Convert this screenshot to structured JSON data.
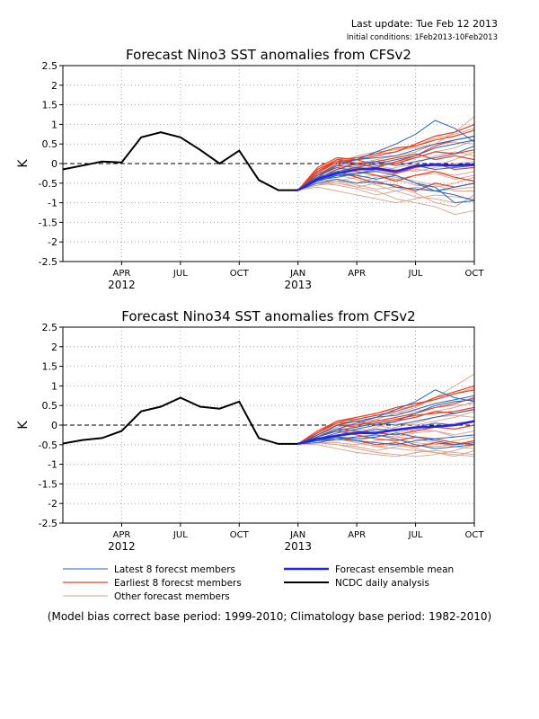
{
  "header": {
    "last_update": "Last update: Tue Feb 12 2013",
    "initial_conditions": "Initial conditions: 1Feb2013-10Feb2013"
  },
  "footnote": "(Model bias correct base period: 1999-2010; Climatology base period: 1982-2010)",
  "colors": {
    "latest": "#2166c4",
    "earliest": "#f03c1a",
    "other": "#d9a08a",
    "mean": "#2424e6",
    "analysis": "#000000"
  },
  "legend": {
    "latest": "Latest 8 forecst members",
    "earliest": "Earliest 8 forecst members",
    "other": "Other forecast members",
    "mean": "Forecast ensemble mean",
    "analysis": "NCDC daily analysis"
  },
  "chart_data": [
    {
      "type": "line",
      "title": "Forecast Nino3 SST anomalies from CFSv2",
      "ylabel": "K",
      "ylim": [
        -2.5,
        2.5
      ],
      "yticks": [
        "2.5",
        "2",
        "1.5",
        "1",
        "0.5",
        "0",
        "-0.5",
        "-1",
        "-1.5",
        "-2",
        "-2.5"
      ],
      "xlim": [
        0,
        21
      ],
      "xticks": [
        {
          "x": 3,
          "label": "APR",
          "year": "2012"
        },
        {
          "x": 6,
          "label": "JUL",
          "year": ""
        },
        {
          "x": 9,
          "label": "OCT",
          "year": ""
        },
        {
          "x": 12,
          "label": "JAN",
          "year": "2013"
        },
        {
          "x": 15,
          "label": "APR",
          "year": ""
        },
        {
          "x": 18,
          "label": "JUL",
          "year": ""
        },
        {
          "x": 21,
          "label": "OCT",
          "year": ""
        }
      ],
      "grid": true,
      "zero_line": "dashed",
      "analysis": {
        "x": [
          0,
          1,
          2,
          3,
          4,
          5,
          6,
          7,
          8,
          9,
          10,
          11,
          12
        ],
        "y": [
          -0.15,
          -0.05,
          0.05,
          0.03,
          0.67,
          0.8,
          0.67,
          0.35,
          0.0,
          0.33,
          -0.42,
          -0.68,
          -0.68
        ]
      },
      "forecast_x": [
        12,
        13,
        14,
        15,
        16,
        17,
        18,
        19,
        20,
        21
      ],
      "ensemble_mean": [
        -0.68,
        -0.4,
        -0.25,
        -0.15,
        -0.12,
        -0.2,
        -0.06,
        -0.03,
        -0.05,
        -0.02
      ],
      "members": {
        "latest": [
          [
            -0.68,
            -0.35,
            -0.05,
            0.1,
            0.3,
            0.5,
            0.75,
            1.1,
            0.9,
            0.55
          ],
          [
            -0.68,
            -0.45,
            -0.3,
            -0.25,
            -0.2,
            -0.3,
            -0.5,
            -0.7,
            -0.8,
            -0.95
          ],
          [
            -0.68,
            -0.3,
            0.0,
            0.1,
            0.15,
            0.2,
            0.35,
            0.5,
            0.6,
            0.7
          ],
          [
            -0.68,
            -0.5,
            -0.4,
            -0.5,
            -0.45,
            -0.6,
            -0.65,
            -0.7,
            -0.6,
            -0.5
          ],
          [
            -0.68,
            -0.4,
            -0.2,
            -0.1,
            0.0,
            0.1,
            0.2,
            0.4,
            0.5,
            0.6
          ],
          [
            -0.68,
            -0.45,
            -0.3,
            -0.3,
            -0.4,
            -0.3,
            -0.5,
            -0.6,
            -1.0,
            -0.95
          ],
          [
            -0.68,
            -0.38,
            -0.15,
            0.0,
            0.05,
            -0.05,
            0.05,
            0.15,
            0.25,
            0.45
          ],
          [
            -0.68,
            -0.42,
            -0.35,
            -0.25,
            -0.15,
            -0.2,
            -0.05,
            -0.15,
            -0.1,
            -0.05
          ]
        ],
        "earliest": [
          [
            -0.68,
            -0.1,
            0.15,
            0.1,
            0.2,
            0.3,
            0.5,
            0.7,
            0.8,
            1.0
          ],
          [
            -0.68,
            -0.2,
            0.1,
            0.0,
            -0.1,
            0.05,
            0.2,
            0.45,
            0.6,
            0.7
          ],
          [
            -0.68,
            -0.3,
            -0.1,
            -0.2,
            -0.3,
            -0.45,
            -0.3,
            -0.2,
            -0.35,
            -0.45
          ],
          [
            -0.68,
            -0.25,
            0.05,
            0.1,
            -0.05,
            0.0,
            0.15,
            0.3,
            0.25,
            0.35
          ],
          [
            -0.68,
            -0.35,
            -0.2,
            -0.35,
            -0.5,
            -0.55,
            -0.7,
            -0.5,
            -0.6,
            -0.5
          ],
          [
            -0.68,
            -0.15,
            0.1,
            0.15,
            0.25,
            0.4,
            0.45,
            0.6,
            0.7,
            0.85
          ],
          [
            -0.68,
            -0.3,
            -0.05,
            -0.1,
            -0.15,
            -0.25,
            -0.1,
            0.0,
            -0.15,
            -0.1
          ],
          [
            -0.68,
            -0.2,
            0.05,
            -0.05,
            0.05,
            0.15,
            0.25,
            0.1,
            0.2,
            0.1
          ]
        ],
        "other": [
          [
            -0.68,
            -0.5,
            -0.45,
            -0.6,
            -0.7,
            -0.9,
            -1.0,
            -1.1,
            -1.3,
            -1.2
          ],
          [
            -0.68,
            -0.45,
            -0.3,
            -0.4,
            -0.55,
            -0.7,
            -0.85,
            -0.9,
            -1.0,
            -0.95
          ],
          [
            -0.68,
            -0.3,
            -0.15,
            -0.1,
            0.1,
            0.2,
            0.3,
            0.5,
            0.8,
            1.2
          ],
          [
            -0.68,
            -0.55,
            -0.5,
            -0.6,
            -0.5,
            -0.4,
            -0.55,
            -0.6,
            -0.5,
            -0.35
          ],
          [
            -0.68,
            -0.35,
            0.0,
            0.2,
            0.3,
            0.35,
            0.4,
            0.5,
            0.55,
            0.5
          ],
          [
            -0.68,
            -0.6,
            -0.7,
            -0.8,
            -0.9,
            -1.0,
            -0.9,
            -0.8,
            -0.85,
            -0.9
          ],
          [
            -0.68,
            -0.4,
            -0.25,
            -0.15,
            -0.2,
            -0.1,
            0.0,
            0.2,
            0.3,
            0.2
          ],
          [
            -0.68,
            -0.5,
            -0.45,
            -0.35,
            -0.3,
            -0.4,
            -0.3,
            -0.25,
            -0.4,
            -0.3
          ],
          [
            -0.68,
            -0.25,
            -0.1,
            0.0,
            0.1,
            0.0,
            -0.1,
            -0.05,
            0.1,
            0.3
          ],
          [
            -0.68,
            -0.45,
            -0.4,
            -0.55,
            -0.65,
            -0.6,
            -0.75,
            -1.0,
            -1.1,
            -0.8
          ],
          [
            -0.68,
            -0.35,
            -0.2,
            -0.3,
            -0.1,
            0.05,
            0.15,
            0.3,
            0.4,
            0.6
          ],
          [
            -0.68,
            -0.5,
            -0.55,
            -0.65,
            -0.8,
            -0.7,
            -0.6,
            -0.7,
            -0.65,
            -0.6
          ],
          [
            -0.68,
            -0.3,
            -0.05,
            0.05,
            -0.05,
            -0.15,
            -0.2,
            -0.1,
            0.0,
            0.05
          ],
          [
            -0.68,
            -0.4,
            -0.3,
            -0.2,
            -0.3,
            -0.35,
            -0.45,
            -0.55,
            -0.7,
            -0.7
          ],
          [
            -0.68,
            -0.2,
            0.05,
            0.15,
            0.25,
            0.3,
            0.45,
            0.65,
            0.75,
            0.9
          ],
          [
            -0.68,
            -0.55,
            -0.45,
            -0.5,
            -0.35,
            -0.25,
            -0.15,
            -0.2,
            -0.3,
            -0.2
          ]
        ]
      }
    },
    {
      "type": "line",
      "title": "Forecast Nino34 SST anomalies from CFSv2",
      "ylabel": "K",
      "ylim": [
        -2.5,
        2.5
      ],
      "yticks": [
        "2.5",
        "2",
        "1.5",
        "1",
        "0.5",
        "0",
        "-0.5",
        "-1",
        "-1.5",
        "-2",
        "-2.5"
      ],
      "xlim": [
        0,
        21
      ],
      "xticks": [
        {
          "x": 3,
          "label": "APR",
          "year": "2012"
        },
        {
          "x": 6,
          "label": "JUL",
          "year": ""
        },
        {
          "x": 9,
          "label": "OCT",
          "year": ""
        },
        {
          "x": 12,
          "label": "JAN",
          "year": "2013"
        },
        {
          "x": 15,
          "label": "APR",
          "year": ""
        },
        {
          "x": 18,
          "label": "JUL",
          "year": ""
        },
        {
          "x": 21,
          "label": "OCT",
          "year": ""
        }
      ],
      "grid": true,
      "zero_line": "dashed",
      "analysis": {
        "x": [
          0,
          1,
          2,
          3,
          4,
          5,
          6,
          7,
          8,
          9,
          10,
          11,
          12
        ],
        "y": [
          -0.47,
          -0.38,
          -0.33,
          -0.15,
          0.35,
          0.47,
          0.7,
          0.47,
          0.42,
          0.6,
          -0.33,
          -0.48,
          -0.48
        ]
      },
      "forecast_x": [
        12,
        13,
        14,
        15,
        16,
        17,
        18,
        19,
        20,
        21
      ],
      "ensemble_mean": [
        -0.48,
        -0.35,
        -0.27,
        -0.2,
        -0.2,
        -0.12,
        -0.06,
        -0.04,
        0.0,
        0.1
      ],
      "members": {
        "latest": [
          [
            -0.48,
            -0.3,
            -0.1,
            0.05,
            0.2,
            0.4,
            0.6,
            0.9,
            0.7,
            0.6
          ],
          [
            -0.48,
            -0.4,
            -0.35,
            -0.3,
            -0.25,
            -0.35,
            -0.5,
            -0.6,
            -0.55,
            -0.5
          ],
          [
            -0.48,
            -0.25,
            0.0,
            0.1,
            0.2,
            0.25,
            0.4,
            0.55,
            0.65,
            0.75
          ],
          [
            -0.48,
            -0.45,
            -0.35,
            -0.4,
            -0.45,
            -0.5,
            -0.4,
            -0.35,
            -0.3,
            -0.25
          ],
          [
            -0.48,
            -0.35,
            -0.2,
            -0.1,
            0.0,
            0.1,
            0.3,
            0.5,
            0.6,
            0.65
          ],
          [
            -0.48,
            -0.4,
            -0.3,
            -0.35,
            -0.3,
            -0.2,
            -0.3,
            -0.4,
            -0.5,
            -0.45
          ],
          [
            -0.48,
            -0.3,
            -0.15,
            -0.05,
            0.05,
            0.0,
            0.1,
            0.2,
            0.3,
            0.4
          ],
          [
            -0.48,
            -0.35,
            -0.25,
            -0.2,
            -0.1,
            -0.15,
            -0.05,
            0.05,
            0.0,
            0.1
          ]
        ],
        "earliest": [
          [
            -0.48,
            -0.15,
            0.1,
            0.15,
            0.25,
            0.35,
            0.5,
            0.7,
            0.85,
            1.0
          ],
          [
            -0.48,
            -0.25,
            0.0,
            0.0,
            0.1,
            0.2,
            0.3,
            0.45,
            0.55,
            0.7
          ],
          [
            -0.48,
            -0.3,
            -0.15,
            -0.25,
            -0.35,
            -0.4,
            -0.3,
            -0.35,
            -0.45,
            -0.5
          ],
          [
            -0.48,
            -0.2,
            0.05,
            0.1,
            0.0,
            0.1,
            0.2,
            0.35,
            0.3,
            0.4
          ],
          [
            -0.48,
            -0.35,
            -0.3,
            -0.4,
            -0.5,
            -0.45,
            -0.55,
            -0.45,
            -0.5,
            -0.4
          ],
          [
            -0.48,
            -0.2,
            0.1,
            0.2,
            0.3,
            0.45,
            0.55,
            0.65,
            0.8,
            0.9
          ],
          [
            -0.48,
            -0.3,
            -0.1,
            -0.15,
            -0.2,
            -0.25,
            -0.15,
            -0.05,
            -0.1,
            0.0
          ],
          [
            -0.48,
            -0.25,
            0.0,
            -0.05,
            0.05,
            0.15,
            0.25,
            0.3,
            0.35,
            0.45
          ]
        ],
        "other": [
          [
            -0.48,
            -0.45,
            -0.5,
            -0.6,
            -0.7,
            -0.75,
            -0.8,
            -0.75,
            -0.65,
            -0.5
          ],
          [
            -0.48,
            -0.4,
            -0.35,
            -0.45,
            -0.55,
            -0.6,
            -0.65,
            -0.7,
            -0.75,
            -0.8
          ],
          [
            -0.48,
            -0.3,
            -0.1,
            -0.05,
            0.15,
            0.3,
            0.45,
            0.7,
            1.0,
            1.3
          ],
          [
            -0.48,
            -0.45,
            -0.45,
            -0.5,
            -0.4,
            -0.35,
            -0.45,
            -0.5,
            -0.4,
            -0.3
          ],
          [
            -0.48,
            -0.3,
            0.0,
            0.15,
            0.25,
            0.3,
            0.35,
            0.45,
            0.5,
            0.55
          ],
          [
            -0.48,
            -0.5,
            -0.6,
            -0.7,
            -0.75,
            -0.8,
            -0.7,
            -0.65,
            -0.7,
            -0.75
          ],
          [
            -0.48,
            -0.35,
            -0.2,
            -0.1,
            -0.15,
            -0.05,
            0.05,
            0.2,
            0.25,
            0.2
          ],
          [
            -0.48,
            -0.4,
            -0.4,
            -0.3,
            -0.25,
            -0.3,
            -0.2,
            -0.15,
            -0.3,
            -0.25
          ],
          [
            -0.48,
            -0.25,
            -0.05,
            0.05,
            0.15,
            0.05,
            0.0,
            0.1,
            0.2,
            0.35
          ],
          [
            -0.48,
            -0.4,
            -0.35,
            -0.45,
            -0.55,
            -0.5,
            -0.6,
            -0.7,
            -0.8,
            -0.65
          ],
          [
            -0.48,
            -0.3,
            -0.15,
            -0.2,
            -0.05,
            0.1,
            0.2,
            0.35,
            0.45,
            0.6
          ],
          [
            -0.48,
            -0.45,
            -0.5,
            -0.55,
            -0.65,
            -0.55,
            -0.5,
            -0.55,
            -0.5,
            -0.45
          ],
          [
            -0.48,
            -0.3,
            -0.05,
            0.05,
            0.0,
            -0.1,
            -0.15,
            -0.05,
            0.05,
            0.1
          ],
          [
            -0.48,
            -0.35,
            -0.25,
            -0.15,
            -0.25,
            -0.3,
            -0.35,
            -0.45,
            -0.55,
            -0.6
          ],
          [
            -0.48,
            -0.2,
            0.05,
            0.2,
            0.3,
            0.4,
            0.5,
            0.65,
            0.8,
            0.95
          ],
          [
            -0.48,
            -0.45,
            -0.35,
            -0.4,
            -0.3,
            -0.2,
            -0.1,
            -0.15,
            -0.25,
            -0.15
          ]
        ]
      }
    }
  ]
}
